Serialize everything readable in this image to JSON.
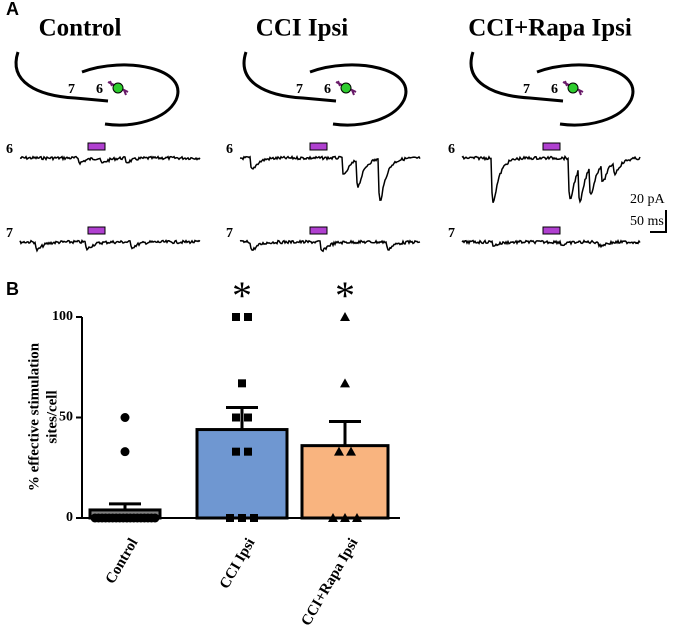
{
  "panel_a": {
    "label": "A",
    "titles": [
      "Control",
      "CCI Ipsi",
      "CCI+Rapa Ipsi"
    ],
    "diagram_labels": [
      "7",
      "6"
    ],
    "trace_labels": [
      "6",
      "7"
    ],
    "scale_bar": [
      "20 pA",
      "50 ms"
    ]
  },
  "chart_data": {
    "type": "bar",
    "panel_label": "B",
    "ylabel_lines": [
      "% effective stimulation",
      "sites/cell"
    ],
    "categories": [
      "Control",
      "CCI Ipsi",
      "CCI+Rapa Ipsi"
    ],
    "series": [
      {
        "values": [
          4,
          44,
          36
        ],
        "errors": [
          3,
          11,
          12
        ],
        "colors": [
          "#808080",
          "#6f97d1",
          "#f9b47f"
        ],
        "markers": [
          "circle",
          "square",
          "triangle"
        ],
        "points": [
          [
            50,
            33,
            0,
            0,
            0,
            0,
            0,
            0,
            0,
            0,
            0,
            0,
            0,
            0,
            0,
            0,
            0,
            0,
            0,
            0
          ],
          [
            100,
            100,
            67,
            50,
            50,
            33,
            33,
            0,
            0,
            0
          ],
          [
            100,
            67,
            33,
            33,
            0,
            0,
            0
          ]
        ]
      }
    ],
    "annotations": [
      {
        "category": 1,
        "text": "*"
      },
      {
        "category": 2,
        "text": "*"
      }
    ],
    "ylim": [
      0,
      100
    ],
    "yticks": [
      0,
      50,
      100
    ]
  }
}
